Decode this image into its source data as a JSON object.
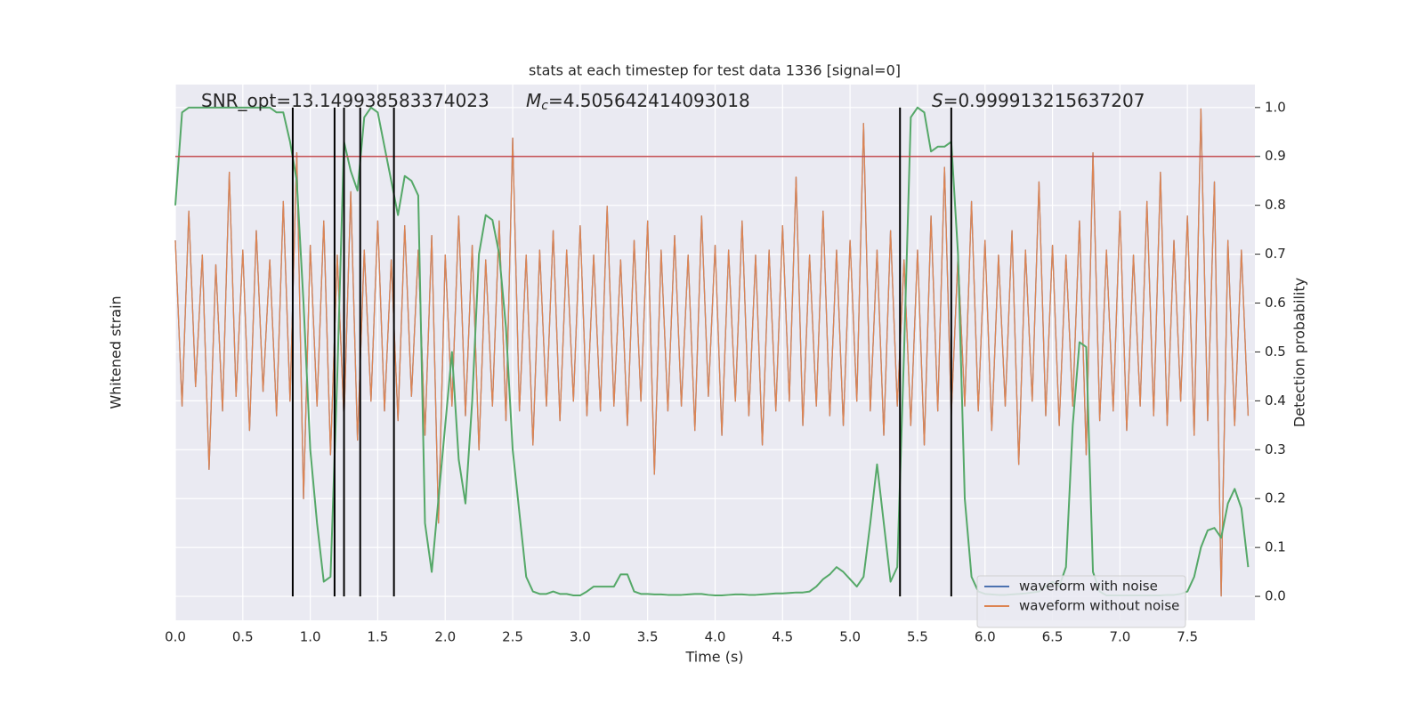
{
  "chart_data": {
    "type": "line",
    "title": "stats at each timestep for test data 1336 [signal=0]",
    "xlabel": "Time (s)",
    "ylabel": "Whitened strain",
    "y2label": "Detection probability",
    "annotations": [
      {
        "parts": [
          "SNR_opt=13.149938583374023"
        ]
      },
      {
        "parts": [
          "M",
          "c",
          "=4.505642414093018"
        ]
      },
      {
        "parts": [
          "S",
          "=0.999913215637207"
        ]
      }
    ],
    "xlim": [
      0,
      8.0
    ],
    "xticks": [
      {
        "value": 0,
        "label": "0.0"
      },
      0.5,
      {
        "value": 1,
        "label": "1.0"
      },
      1.5,
      {
        "value": 2,
        "label": "2.0"
      },
      2.5,
      {
        "value": 3,
        "label": "3.0"
      },
      3.5,
      {
        "value": 4,
        "label": "4.0"
      },
      4.5,
      {
        "value": 5,
        "label": "5.0"
      },
      5.5,
      {
        "value": 6,
        "label": "6.0"
      },
      6.5,
      {
        "value": 7,
        "label": "7.0"
      },
      7.5
    ],
    "ylim": [
      -6,
      5
    ],
    "y2lim": [
      -0.049,
      1.047
    ],
    "y2ticks": [
      {
        "value": 0,
        "label": "0.0"
      },
      0.1,
      0.2,
      0.3,
      0.4,
      0.5,
      0.6,
      0.7,
      0.8,
      0.9,
      {
        "value": 1,
        "label": "1.0"
      }
    ],
    "grid": true,
    "legend": "lower right",
    "x": [
      0,
      0.05,
      0.1,
      0.15,
      0.2,
      0.25,
      0.3,
      0.35,
      0.4,
      0.45,
      0.5,
      0.55,
      0.6,
      0.65,
      0.7,
      0.75,
      0.8,
      0.85,
      0.9,
      0.95,
      1,
      1.05,
      1.1,
      1.15,
      1.2,
      1.25,
      1.3,
      1.35,
      1.4,
      1.45,
      1.5,
      1.55,
      1.6,
      1.65,
      1.7,
      1.75,
      1.8,
      1.85,
      1.9,
      1.95,
      2,
      2.05,
      2.1,
      2.15,
      2.2,
      2.25,
      2.3,
      2.35,
      2.4,
      2.45,
      2.5,
      2.55,
      2.6,
      2.65,
      2.7,
      2.75,
      2.8,
      2.85,
      2.9,
      2.95,
      3,
      3.05,
      3.1,
      3.15,
      3.2,
      3.25,
      3.3,
      3.35,
      3.4,
      3.45,
      3.5,
      3.55,
      3.6,
      3.65,
      3.7,
      3.75,
      3.8,
      3.85,
      3.9,
      3.95,
      4,
      4.05,
      4.1,
      4.15,
      4.2,
      4.25,
      4.3,
      4.35,
      4.4,
      4.45,
      4.5,
      4.55,
      4.6,
      4.65,
      4.7,
      4.75,
      4.8,
      4.85,
      4.9,
      4.95,
      5,
      5.05,
      5.1,
      5.15,
      5.2,
      5.25,
      5.3,
      5.35,
      5.4,
      5.45,
      5.5,
      5.55,
      5.6,
      5.65,
      5.7,
      5.75,
      5.8,
      5.85,
      5.9,
      5.95,
      6,
      6.05,
      6.1,
      6.15,
      6.2,
      6.25,
      6.3,
      6.35,
      6.4,
      6.45,
      6.5,
      6.55,
      6.6,
      6.65,
      6.7,
      6.75,
      6.8,
      6.85,
      6.9,
      6.95,
      7,
      7.05,
      7.1,
      7.15,
      7.2,
      7.25,
      7.3,
      7.35,
      7.4,
      7.45,
      7.5,
      7.55,
      7.6,
      7.65,
      7.7,
      7.75,
      7.8,
      7.85,
      7.9,
      7.95
    ],
    "series": [
      {
        "name": "waveform with noise",
        "color": "#4c72b0",
        "values": [
          1.8,
          -1.6,
          2.4,
          -1.2,
          1.5,
          -2.9,
          1.3,
          -1.7,
          3.2,
          -1.4,
          1.6,
          -2.1,
          2.0,
          -1.3,
          1.4,
          -1.8,
          2.6,
          -1.5,
          3.6,
          -3.5,
          1.7,
          -1.6,
          2.2,
          -2.6,
          1.5,
          -1.9,
          2.8,
          -2.3,
          1.6,
          -1.5,
          2.2,
          -1.7,
          1.4,
          -1.9,
          2.1,
          -1.4,
          1.6,
          -2.2,
          1.9,
          -4.0,
          1.5,
          -1.6,
          2.3,
          -1.8,
          1.7,
          -2.5,
          1.4,
          -1.6,
          2.2,
          -1.9,
          3.9,
          -1.7,
          1.5,
          -2.4,
          1.6,
          -1.6,
          2.0,
          -1.9,
          1.6,
          -1.5,
          2.1,
          -1.8,
          1.5,
          -1.7,
          2.5,
          -1.6,
          1.4,
          -2.0,
          1.8,
          -1.5,
          2.2,
          -3.0,
          1.6,
          -1.7,
          1.9,
          -1.6,
          1.5,
          -2.1,
          2.3,
          -1.4,
          1.7,
          -2.2,
          1.6,
          -1.5,
          2.2,
          -1.8,
          1.5,
          -2.4,
          1.6,
          -1.7,
          2.1,
          -1.5,
          3.1,
          -2.0,
          1.5,
          -1.6,
          2.4,
          -1.8,
          1.6,
          -2.0,
          1.8,
          -1.5,
          4.2,
          -1.7,
          1.6,
          -2.2,
          2.0,
          -1.6,
          1.4,
          -2.0,
          1.6,
          -2.4,
          2.3,
          -1.7,
          3.3,
          -1.8,
          1.5,
          -1.6,
          2.6,
          -1.7,
          1.8,
          -2.1,
          1.5,
          -1.6,
          2.0,
          -2.8,
          1.6,
          -1.5,
          3.0,
          -1.8,
          1.7,
          -2.0,
          1.5,
          -1.6,
          2.2,
          -2.6,
          3.6,
          -1.9,
          1.6,
          -1.7,
          2.4,
          -2.1,
          1.5,
          -1.6,
          2.6,
          -1.8,
          3.2,
          -2.0,
          1.8,
          -1.5,
          2.3,
          -2.2,
          4.5,
          -1.9,
          3.0,
          -5.5,
          1.8,
          -2.0,
          1.6,
          -1.8
        ]
      },
      {
        "name": "waveform without noise",
        "color": "#dd8452",
        "values": [
          1.8,
          -1.6,
          2.4,
          -1.2,
          1.5,
          -2.9,
          1.3,
          -1.7,
          3.2,
          -1.4,
          1.6,
          -2.1,
          2.0,
          -1.3,
          1.4,
          -1.8,
          2.6,
          -1.5,
          3.6,
          -3.5,
          1.7,
          -1.6,
          2.2,
          -2.6,
          1.5,
          -1.9,
          2.8,
          -2.3,
          1.6,
          -1.5,
          2.2,
          -1.7,
          1.4,
          -1.9,
          2.1,
          -1.4,
          1.6,
          -2.2,
          1.9,
          -4.0,
          1.5,
          -1.6,
          2.3,
          -1.8,
          1.7,
          -2.5,
          1.4,
          -1.6,
          2.2,
          -1.9,
          3.9,
          -1.7,
          1.5,
          -2.4,
          1.6,
          -1.6,
          2.0,
          -1.9,
          1.6,
          -1.5,
          2.1,
          -1.8,
          1.5,
          -1.7,
          2.5,
          -1.6,
          1.4,
          -2.0,
          1.8,
          -1.5,
          2.2,
          -3.0,
          1.6,
          -1.7,
          1.9,
          -1.6,
          1.5,
          -2.1,
          2.3,
          -1.4,
          1.7,
          -2.2,
          1.6,
          -1.5,
          2.2,
          -1.8,
          1.5,
          -2.4,
          1.6,
          -1.7,
          2.1,
          -1.5,
          3.1,
          -2.0,
          1.5,
          -1.6,
          2.4,
          -1.8,
          1.6,
          -2.0,
          1.8,
          -1.5,
          4.2,
          -1.7,
          1.6,
          -2.2,
          2.0,
          -1.6,
          1.4,
          -2.0,
          1.6,
          -2.4,
          2.3,
          -1.7,
          3.3,
          -1.8,
          1.5,
          -1.6,
          2.6,
          -1.7,
          1.8,
          -2.1,
          1.5,
          -1.6,
          2.0,
          -2.8,
          1.6,
          -1.5,
          3.0,
          -1.8,
          1.7,
          -2.0,
          1.5,
          -1.6,
          2.2,
          -2.6,
          3.6,
          -1.9,
          1.6,
          -1.7,
          2.4,
          -2.1,
          1.5,
          -1.6,
          2.6,
          -1.8,
          3.2,
          -2.0,
          1.8,
          -1.5,
          2.3,
          -2.2,
          4.5,
          -1.9,
          3.0,
          -5.5,
          1.8,
          -2.0,
          1.6,
          -1.8
        ]
      },
      {
        "color": "#55a868",
        "axis": "y2",
        "values": [
          0.8,
          0.99,
          1.0,
          1.0,
          1.0,
          1.0,
          1.0,
          1.0,
          1.0,
          1.0,
          1.0,
          1.0,
          1.0,
          1.0,
          1.0,
          0.99,
          0.99,
          0.93,
          0.85,
          0.6,
          0.3,
          0.15,
          0.03,
          0.04,
          0.45,
          0.93,
          0.87,
          0.83,
          0.98,
          1.0,
          0.99,
          0.92,
          0.85,
          0.78,
          0.86,
          0.85,
          0.82,
          0.15,
          0.05,
          0.2,
          0.35,
          0.5,
          0.28,
          0.19,
          0.4,
          0.7,
          0.78,
          0.77,
          0.7,
          0.55,
          0.3,
          0.17,
          0.04,
          0.01,
          0.005,
          0.005,
          0.01,
          0.005,
          0.005,
          0.002,
          0.002,
          0.01,
          0.02,
          0.02,
          0.02,
          0.02,
          0.045,
          0.045,
          0.01,
          0.005,
          0.005,
          0.004,
          0.004,
          0.003,
          0.003,
          0.003,
          0.004,
          0.005,
          0.005,
          0.003,
          0.002,
          0.002,
          0.003,
          0.004,
          0.004,
          0.003,
          0.003,
          0.004,
          0.005,
          0.006,
          0.006,
          0.007,
          0.008,
          0.008,
          0.01,
          0.02,
          0.035,
          0.045,
          0.06,
          0.05,
          0.035,
          0.02,
          0.04,
          0.15,
          0.27,
          0.15,
          0.03,
          0.06,
          0.5,
          0.98,
          1.0,
          0.99,
          0.91,
          0.92,
          0.92,
          0.93,
          0.7,
          0.2,
          0.04,
          0.01,
          0.005,
          0.004,
          0.003,
          0.003,
          0.004,
          0.005,
          0.006,
          0.008,
          0.01,
          0.02,
          0.03,
          0.02,
          0.06,
          0.35,
          0.52,
          0.51,
          0.05,
          0.01,
          0.002,
          0.002,
          0.002,
          0.002,
          0.002,
          0.002,
          0.002,
          0.002,
          0.002,
          0.003,
          0.003,
          0.005,
          0.01,
          0.04,
          0.1,
          0.135,
          0.14,
          0.12,
          0.19,
          0.22,
          0.18,
          0.06
        ]
      }
    ],
    "threshold": 0.9,
    "threshold_color": "#c44e52",
    "vlines": [
      0.87,
      1.18,
      1.25,
      1.37,
      1.62,
      5.37,
      5.75
    ],
    "vline_color": "#000000"
  }
}
